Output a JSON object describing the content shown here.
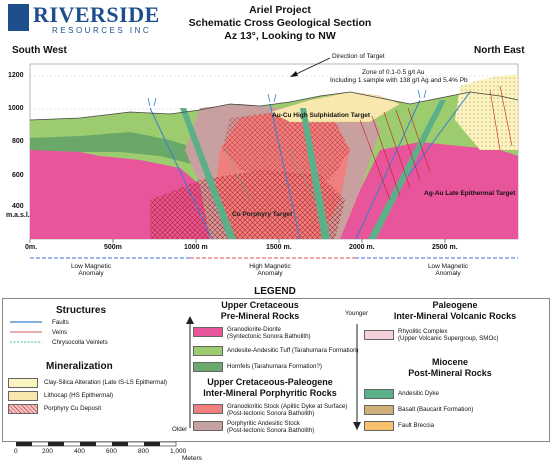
{
  "logo": {
    "name": "RIVERSIDE",
    "subtitle": "RESOURCES INC"
  },
  "title": [
    "Ariel Project",
    "Schematic Cross Geological Section",
    "Az 13°, Looking to NW"
  ],
  "directions": {
    "left": "South West",
    "right": "North East"
  },
  "annotations": {
    "direction_of_target": "Direction of Target",
    "zone_line1": "Zone of 0.1-0.5 g/t Au",
    "zone_line2": "Including 1 sample with 138 g/t Ag and 5.4% Pb",
    "au_cu": "Au-Cu High Sulphidation Target",
    "cu_porphyry": "Cu Porphyry Target",
    "ag_au": "Ag-Au Late Epithermal Target"
  },
  "elevation_labels": [
    "1200",
    "1000",
    "800",
    "600",
    "400"
  ],
  "elevation_unit": "m.a.s.l.",
  "distance_labels": [
    "0m.",
    "500m",
    "1000 m",
    "1500 m.",
    "2000 m.",
    "2500 m."
  ],
  "anomalies": [
    {
      "line1": "Low Magnetic",
      "line2": "Anomaly"
    },
    {
      "line1": "High Magnetic",
      "line2": "Anomaly"
    },
    {
      "line1": "Low Magnetic",
      "line2": "Anomaly"
    }
  ],
  "legend_title": "LEGEND",
  "structures": {
    "heading": "Structures",
    "items": [
      "Faults",
      "Veins",
      "Chrysocolla Veinlets"
    ]
  },
  "mineralization": {
    "heading": "Mineralization",
    "items": [
      "Clay-Silica Alteration (Late IS-LS Epithermal)",
      "Lithocap (HS Epithermal)",
      "Porphyry Cu Deposit"
    ]
  },
  "upper_cretaceous": {
    "heading1": "Upper Cretaceous",
    "heading2": "Pre-Mineral Rocks",
    "items": [
      {
        "line1": "Granodiorite-Diorite",
        "line2": "(Syntectonic Sonora Batholith)"
      },
      {
        "line1": "Andesite-Andesitic Tuff (Tarahumara Formation)",
        "line2": ""
      },
      {
        "line1": "Hornfels (Tarahumara Formation?)",
        "line2": ""
      }
    ]
  },
  "upper_cretaceous_paleogene": {
    "heading1": "Upper Cretaceous-Paleogene",
    "heading2": "Inter-Mineral Porphyritic Rocks",
    "items": [
      {
        "line1": "Granodioritic Stock (Aplitic Dyke at Surface)",
        "line2": "(Post-tectonic Sonora Batholith)"
      },
      {
        "line1": "Porphyritic Andesitic Stock",
        "line2": "(Post-tectonic Sonora Batholith)"
      }
    ]
  },
  "paleogene": {
    "heading1": "Paleogene",
    "heading2": "Inter-Mineral Volcanic Rocks",
    "items": [
      {
        "line1": "Rhyolitic Complex",
        "line2": "(Upper Volcanic Supergroup, SMOc)"
      }
    ]
  },
  "miocene": {
    "heading1": "Miocene",
    "heading2": "Post-Mineral Rocks",
    "items": [
      "Andesitic Dyke",
      "Basalt (Baucarit Formation)",
      "Fault Breccia"
    ]
  },
  "age_arrow": {
    "top": "Younger",
    "bottom": "Older"
  },
  "scale_bar": {
    "labels": [
      "0",
      "200",
      "400",
      "600",
      "800",
      "1,000"
    ],
    "unit": "Meters"
  },
  "colors": {
    "brand_blue": "#1e4f8c",
    "granodiorite": "#e8559b",
    "andesite": "#9ccc6e",
    "hornfels": "#6aa86a",
    "stock": "#f08080",
    "porphyritic": "#c9a0a0",
    "rhyolitic": "#f6d0d8",
    "basalt": "#cdb07a",
    "fault_breccia": "#f5c26b",
    "clay_silica": "#fbf4c0",
    "lithocap": "#f8e8b0"
  }
}
